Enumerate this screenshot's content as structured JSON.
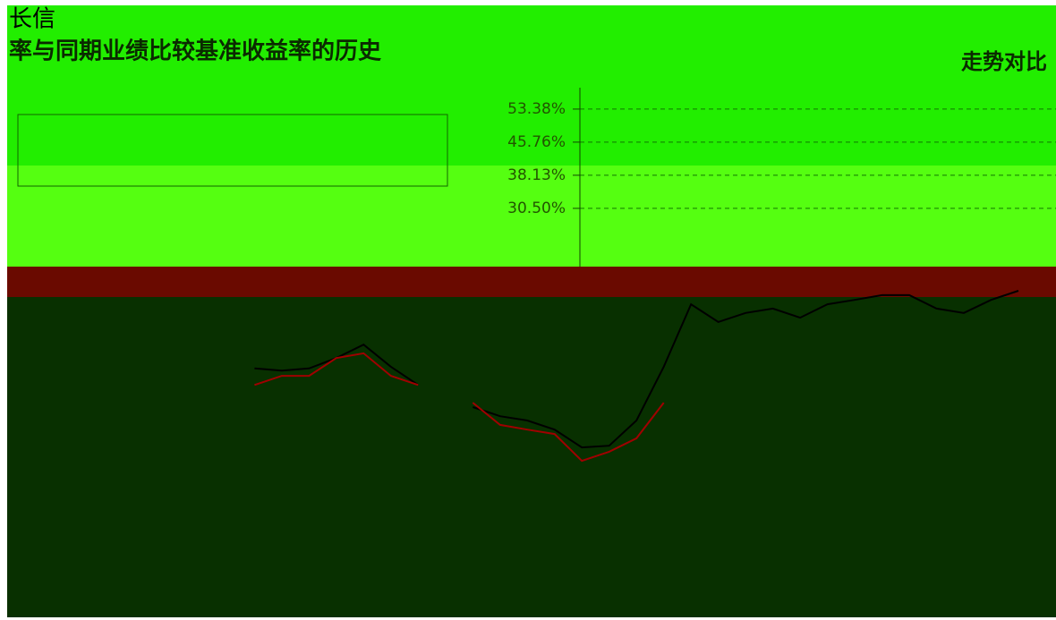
{
  "chart_data": {
    "type": "line",
    "brand": "长信",
    "title": "率与同期业绩比较基准收益率的历史",
    "title_right": "走势对比",
    "categories": [
      null,
      null,
      null,
      null,
      null,
      null,
      null,
      null,
      null,
      null,
      null,
      null,
      null,
      null,
      null,
      null,
      null,
      null,
      null,
      null,
      null,
      null,
      null,
      null,
      null,
      null,
      null,
      null,
      null,
      null,
      null,
      null,
      null,
      null,
      null,
      null,
      null,
      null
    ],
    "series": [
      {
        "color": "#000000",
        "values": [
          null,
          null,
          null,
          null,
          null,
          null,
          null,
          null,
          null,
          -6.4,
          -6.9,
          -6.4,
          -4.0,
          -0.9,
          -6.0,
          -10.2,
          null,
          -15.3,
          -17.4,
          -18.4,
          -20.5,
          -24.6,
          -24.2,
          -18.4,
          -6.0,
          8.4,
          4.3,
          6.4,
          7.4,
          5.3,
          8.4,
          9.4,
          10.5,
          10.5,
          7.4,
          6.4,
          9.4,
          11.5
        ]
      },
      {
        "color": "#a00000",
        "values": [
          null,
          null,
          null,
          null,
          null,
          null,
          null,
          null,
          null,
          -10.2,
          -8.1,
          -8.1,
          -4.0,
          -2.9,
          -8.1,
          -10.2,
          null,
          -14.3,
          -19.4,
          -20.5,
          -21.5,
          -27.7,
          -25.6,
          -22.5,
          -14.3,
          null,
          null,
          null,
          null,
          null,
          null,
          null,
          null,
          null,
          null,
          null,
          null,
          null
        ]
      }
    ],
    "ylim": [
      -63.76,
      57.9
    ],
    "yticks": [
      {
        "value": 53.38,
        "label": "53.38%"
      },
      {
        "value": 45.76,
        "label": "45.76%"
      },
      {
        "value": 38.13,
        "label": "38.13%"
      },
      {
        "value": 30.5,
        "label": "30.50%"
      }
    ],
    "grid": true
  }
}
